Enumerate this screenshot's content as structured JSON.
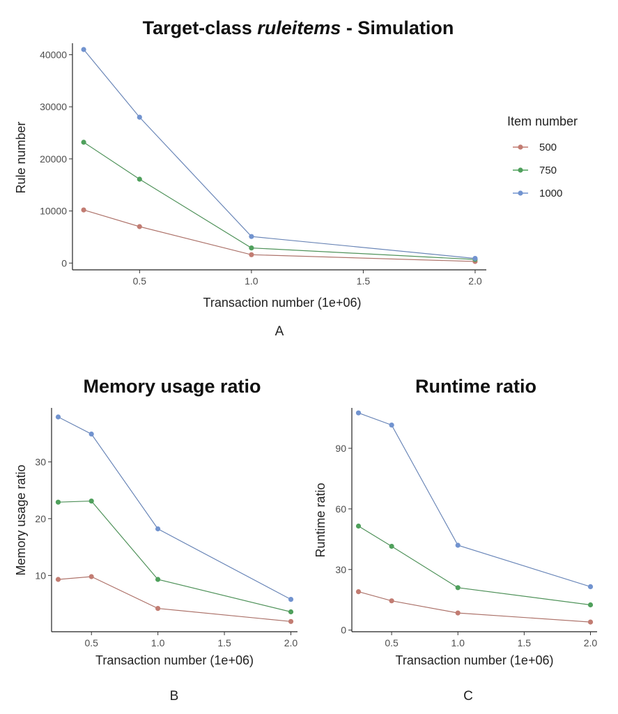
{
  "chart_data": [
    {
      "type": "line",
      "title_parts": [
        {
          "text": "Target-class ",
          "italic": false
        },
        {
          "text": "ruleitems",
          "italic": true
        },
        {
          "text": " - Simulation",
          "italic": false
        }
      ],
      "xlabel": "Transaction number (1e+06)",
      "ylabel": "Rule number",
      "panel_label": "A",
      "x": [
        0.25,
        0.5,
        1.0,
        2.0
      ],
      "xlim": [
        0.2,
        2.05
      ],
      "ylim": [
        -1300,
        42200
      ],
      "xticks": [
        0.5,
        1.0,
        1.5,
        2.0
      ],
      "xtick_labels": [
        "0.5",
        "1.0",
        "1.5",
        "2.0"
      ],
      "yticks": [
        0,
        10000,
        20000,
        30000,
        40000
      ],
      "ytick_labels": [
        "0",
        "10000",
        "20000",
        "30000",
        "40000"
      ],
      "series": [
        {
          "name": "500",
          "color": "#c27c72",
          "values": [
            10200,
            7000,
            1600,
            300
          ]
        },
        {
          "name": "750",
          "color": "#4fa05c",
          "values": [
            23200,
            16100,
            2900,
            700
          ]
        },
        {
          "name": "1000",
          "color": "#7193cf",
          "values": [
            41000,
            28000,
            5100,
            900
          ]
        }
      ],
      "legend": {
        "title": "Item number",
        "position": "right"
      },
      "grid": false
    },
    {
      "type": "line",
      "title_parts": [
        {
          "text": "Memory usage ratio",
          "italic": false
        }
      ],
      "xlabel": "Transaction number  (1e+06)",
      "ylabel": "Memory usage ratio",
      "panel_label": "B",
      "x": [
        0.25,
        0.5,
        1.0,
        2.0
      ],
      "xlim": [
        0.2,
        2.05
      ],
      "ylim": [
        0.1,
        39.5
      ],
      "xticks": [
        0.5,
        1.0,
        1.5,
        2.0
      ],
      "xtick_labels": [
        "0.5",
        "1.0",
        "1.5",
        "2.0"
      ],
      "yticks": [
        10,
        20,
        30
      ],
      "ytick_labels": [
        "10",
        "20",
        "30"
      ],
      "series": [
        {
          "name": "500",
          "color": "#c27c72",
          "values": [
            9.3,
            9.8,
            4.2,
            1.9
          ]
        },
        {
          "name": "750",
          "color": "#4fa05c",
          "values": [
            22.9,
            23.1,
            9.3,
            3.6
          ]
        },
        {
          "name": "1000",
          "color": "#7193cf",
          "values": [
            37.9,
            34.9,
            18.2,
            5.8
          ]
        }
      ],
      "grid": false
    },
    {
      "type": "line",
      "title_parts": [
        {
          "text": "Runtime ratio",
          "italic": false
        }
      ],
      "xlabel": "Transaction number (1e+06)",
      "ylabel": "Runtime ratio",
      "panel_label": "C",
      "x": [
        0.25,
        0.5,
        1.0,
        2.0
      ],
      "xlim": [
        0.2,
        2.05
      ],
      "ylim": [
        -0.8,
        110
      ],
      "xticks": [
        0.5,
        1.0,
        1.5,
        2.0
      ],
      "xtick_labels": [
        "0.5",
        "1.0",
        "1.5",
        "2.0"
      ],
      "yticks": [
        0,
        30,
        60,
        90
      ],
      "ytick_labels": [
        "0",
        "30",
        "60",
        "90"
      ],
      "series": [
        {
          "name": "500",
          "color": "#c27c72",
          "values": [
            19,
            14.5,
            8.5,
            4
          ]
        },
        {
          "name": "750",
          "color": "#4fa05c",
          "values": [
            51.5,
            41.5,
            21,
            12.5
          ]
        },
        {
          "name": "1000",
          "color": "#7193cf",
          "values": [
            107.5,
            101.5,
            42,
            21.5
          ]
        }
      ],
      "grid": false
    }
  ]
}
